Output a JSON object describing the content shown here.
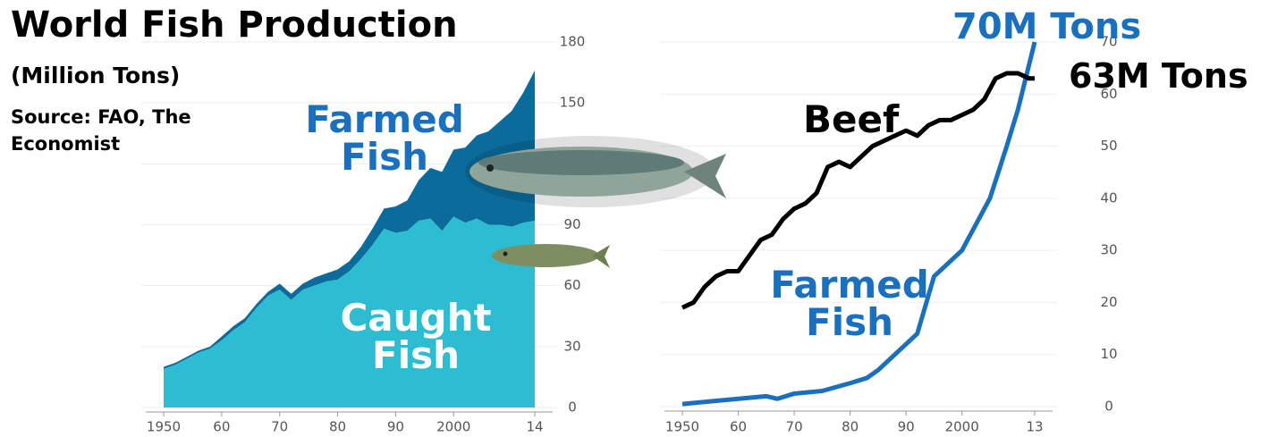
{
  "title": "World Fish Production",
  "subtitle": "(Million Tons)",
  "source": "Source: FAO, The Economist",
  "chart_data": [
    {
      "type": "stacked-area",
      "x": [
        1950,
        1952,
        1954,
        1956,
        1958,
        1960,
        1962,
        1964,
        1966,
        1968,
        1970,
        1972,
        1974,
        1976,
        1978,
        1980,
        1982,
        1984,
        1986,
        1988,
        1990,
        1992,
        1994,
        1996,
        1998,
        2000,
        2002,
        2004,
        2006,
        2008,
        2010,
        2012,
        2014
      ],
      "xlim": [
        1950,
        2014
      ],
      "xticks": [
        1950,
        {
          "value": 1960,
          "label": "60"
        },
        {
          "value": 1970,
          "label": "70"
        },
        {
          "value": 1980,
          "label": "80"
        },
        {
          "value": 1990,
          "label": "90"
        },
        2000,
        {
          "value": 2014,
          "label": "14"
        }
      ],
      "ylim": [
        0,
        180
      ],
      "yticks": [
        0,
        30,
        60,
        90,
        120,
        150,
        180
      ],
      "grid": true,
      "series": [
        {
          "name": "Caught Fish",
          "color": "#2dbdd3",
          "values": [
            19,
            21,
            24,
            27,
            29,
            33,
            38,
            42,
            49,
            55,
            58,
            53,
            58,
            60,
            62,
            63,
            67,
            73,
            80,
            88,
            86,
            87,
            92,
            93,
            87,
            94,
            91,
            93,
            90,
            90,
            89,
            91,
            92
          ]
        },
        {
          "name": "Farmed Fish",
          "color": "#0b6b9b",
          "values": [
            1,
            1,
            1,
            1,
            1,
            2,
            2,
            2,
            2,
            2,
            3,
            3,
            3,
            4,
            4,
            5,
            5,
            6,
            8,
            10,
            13,
            15,
            20,
            25,
            29,
            33,
            37,
            41,
            46,
            51,
            57,
            64,
            74
          ]
        }
      ]
    },
    {
      "type": "line",
      "xlim": [
        1950,
        2013
      ],
      "xticks": [
        1950,
        {
          "value": 1960,
          "label": "60"
        },
        {
          "value": 1970,
          "label": "70"
        },
        {
          "value": 1980,
          "label": "80"
        },
        {
          "value": 1990,
          "label": "90"
        },
        2000,
        {
          "value": 2013,
          "label": "13"
        }
      ],
      "ylim": [
        0,
        70
      ],
      "yticks": [
        0,
        10,
        20,
        30,
        40,
        50,
        60,
        70
      ],
      "grid": true,
      "series": [
        {
          "name": "Beef",
          "color": "#000000",
          "end_label": "63M Tons",
          "x": [
            1950,
            1952,
            1954,
            1956,
            1958,
            1960,
            1962,
            1964,
            1966,
            1968,
            1970,
            1972,
            1974,
            1976,
            1978,
            1980,
            1982,
            1984,
            1986,
            1988,
            1990,
            1992,
            1994,
            1996,
            1998,
            2000,
            2002,
            2004,
            2006,
            2008,
            2010,
            2012,
            2013
          ],
          "values": [
            19,
            20,
            23,
            25,
            26,
            26,
            29,
            32,
            33,
            36,
            38,
            39,
            41,
            46,
            47,
            46,
            48,
            50,
            51,
            52,
            53,
            52,
            54,
            55,
            55,
            56,
            57,
            59,
            63,
            64,
            64,
            63,
            63
          ]
        },
        {
          "name": "Farmed Fish",
          "color": "#1a70bf",
          "end_label": "70M Tons",
          "x": [
            1950,
            1955,
            1960,
            1965,
            1967,
            1970,
            1975,
            1980,
            1983,
            1985,
            1988,
            1990,
            1992,
            1995,
            2000,
            2005,
            2008,
            2010,
            2013
          ],
          "values": [
            0.5,
            1,
            1.5,
            2,
            1.5,
            2.5,
            3,
            4.5,
            5.5,
            7,
            10,
            12,
            14,
            25,
            30,
            40,
            50,
            57,
            70
          ]
        }
      ]
    }
  ]
}
